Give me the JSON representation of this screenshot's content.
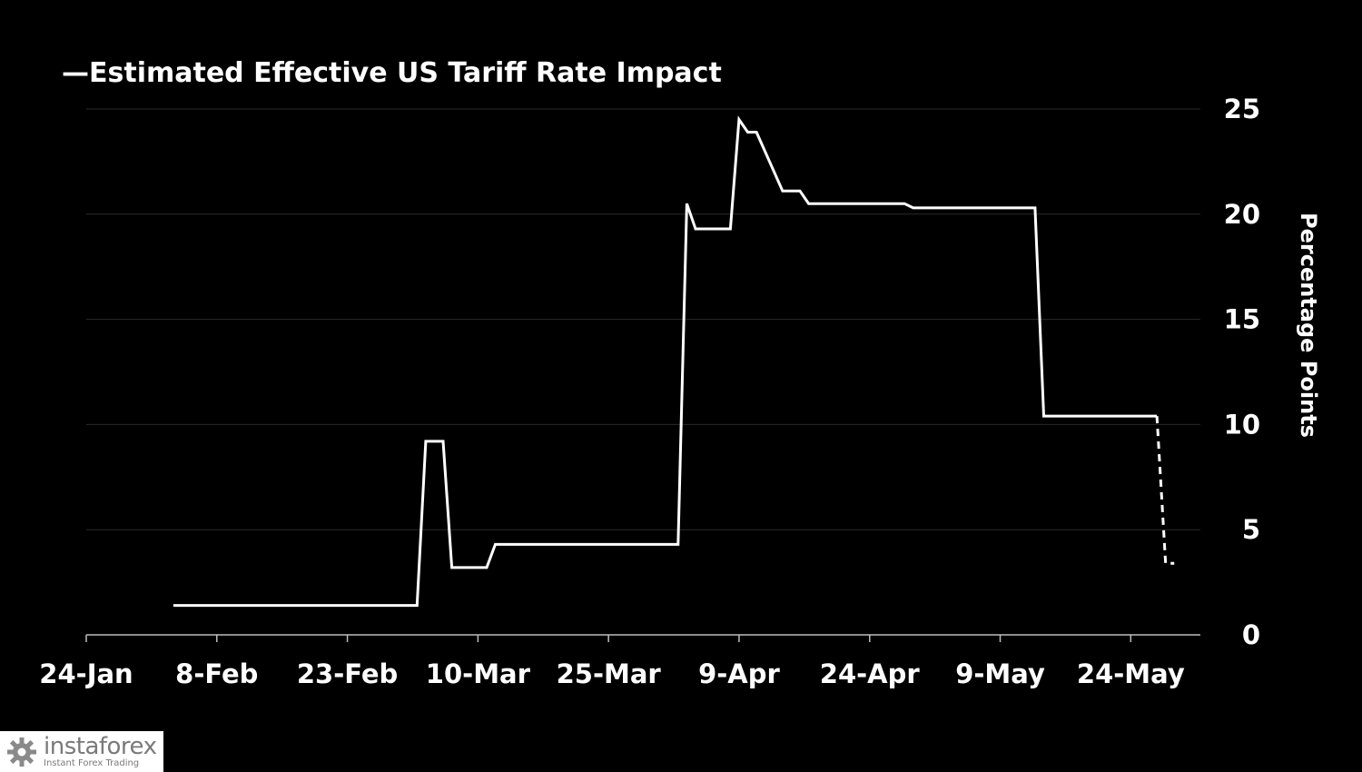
{
  "chart_data": {
    "type": "line",
    "title": "",
    "legend": {
      "entries": [
        "Estimated Effective US Tariff Rate Impact"
      ],
      "placement": "top-left",
      "marker": "—"
    },
    "xlabel": "",
    "ylabel": "Percentage Points",
    "y_axis_side": "right",
    "grid": true,
    "xlim": [
      "2025-01-24",
      "2025-06-01"
    ],
    "ylim": [
      0,
      25
    ],
    "x_ticks": [
      "2025-01-24",
      "2025-02-08",
      "2025-02-23",
      "2025-03-10",
      "2025-03-25",
      "2025-04-09",
      "2025-04-24",
      "2025-05-09",
      "2025-05-24"
    ],
    "x_tick_labels": [
      "24-Jan",
      "8-Feb",
      "23-Feb",
      "10-Mar",
      "25-Mar",
      "9-Apr",
      "24-Apr",
      "9-May",
      "24-May"
    ],
    "y_ticks": [
      0,
      5,
      10,
      15,
      20,
      25
    ],
    "y_tick_labels": [
      "0",
      "5",
      "10",
      "15",
      "20",
      "25"
    ],
    "series": [
      {
        "name": "Estimated Effective US Tariff Rate Impact",
        "color": "#ffffff",
        "style": "solid",
        "points": [
          [
            "2025-02-03",
            1.4
          ],
          [
            "2025-03-03",
            1.4
          ],
          [
            "2025-03-04",
            9.2
          ],
          [
            "2025-03-06",
            9.2
          ],
          [
            "2025-03-07",
            3.2
          ],
          [
            "2025-03-11",
            3.2
          ],
          [
            "2025-03-12",
            4.3
          ],
          [
            "2025-04-02",
            4.3
          ],
          [
            "2025-04-03",
            20.5
          ],
          [
            "2025-04-04",
            19.3
          ],
          [
            "2025-04-08",
            19.3
          ],
          [
            "2025-04-09",
            24.5
          ],
          [
            "2025-04-10",
            23.9
          ],
          [
            "2025-04-11",
            23.9
          ],
          [
            "2025-04-14",
            21.1
          ],
          [
            "2025-04-16",
            21.1
          ],
          [
            "2025-04-17",
            20.5
          ],
          [
            "2025-04-28",
            20.5
          ],
          [
            "2025-04-29",
            20.3
          ],
          [
            "2025-05-13",
            20.3
          ],
          [
            "2025-05-14",
            10.4
          ],
          [
            "2025-05-27",
            10.4
          ]
        ]
      },
      {
        "name": "Estimated Effective US Tariff Rate Impact",
        "color": "#ffffff",
        "style": "dashed",
        "points": [
          [
            "2025-05-27",
            10.4
          ],
          [
            "2025-05-28",
            3.4
          ],
          [
            "2025-05-29",
            3.4
          ]
        ]
      }
    ]
  },
  "watermark": {
    "brand": "instaforex",
    "tagline": "Instant Forex Trading",
    "icon": "gear-icon"
  }
}
